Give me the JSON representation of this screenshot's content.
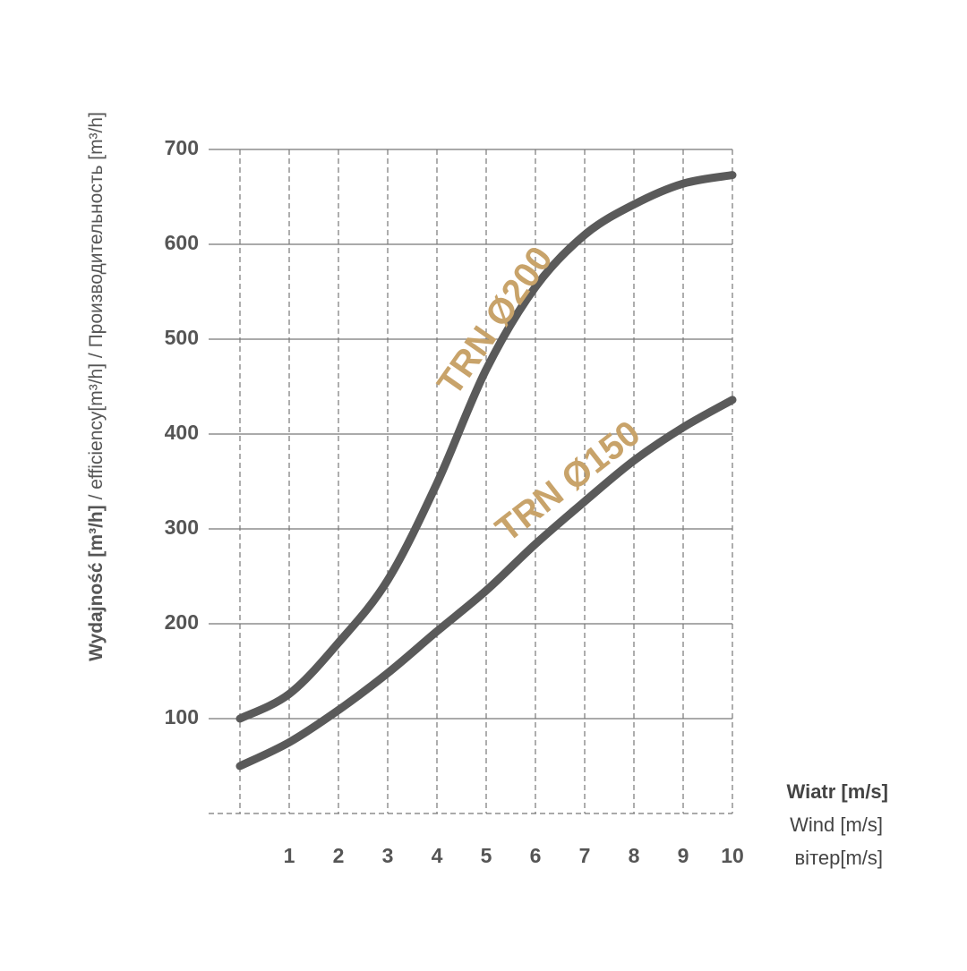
{
  "chart_data": {
    "type": "line",
    "y_label_bold": "Wydajność [m³/h]",
    "y_label_rest": " / efficiency[m³/h] / Производительность  [m³/h]",
    "x_label_lines": [
      "Wiatr [m/s]",
      "Wind [m/s]",
      "вiтер[m/s]"
    ],
    "x": [
      0,
      1,
      2,
      3,
      4,
      5,
      6,
      7,
      8,
      9,
      10
    ],
    "series": [
      {
        "name": "TRN Ø200",
        "color": "#5a5a5a",
        "label_color": "#c8a36a",
        "values": [
          100,
          126,
          180,
          246,
          348,
          468,
          555,
          610,
          642,
          664,
          673
        ]
      },
      {
        "name": "TRN Ø150",
        "color": "#5a5a5a",
        "label_color": "#c8a36a",
        "values": [
          50,
          75,
          109,
          148,
          192,
          235,
          284,
          329,
          372,
          407,
          436
        ]
      }
    ],
    "xlim": [
      0,
      10
    ],
    "xticks": [
      1,
      2,
      3,
      4,
      5,
      6,
      7,
      8,
      9,
      10
    ],
    "ylim": [
      0,
      700
    ],
    "yticks": [
      100,
      200,
      300,
      400,
      500,
      600,
      700
    ],
    "grid": true
  }
}
